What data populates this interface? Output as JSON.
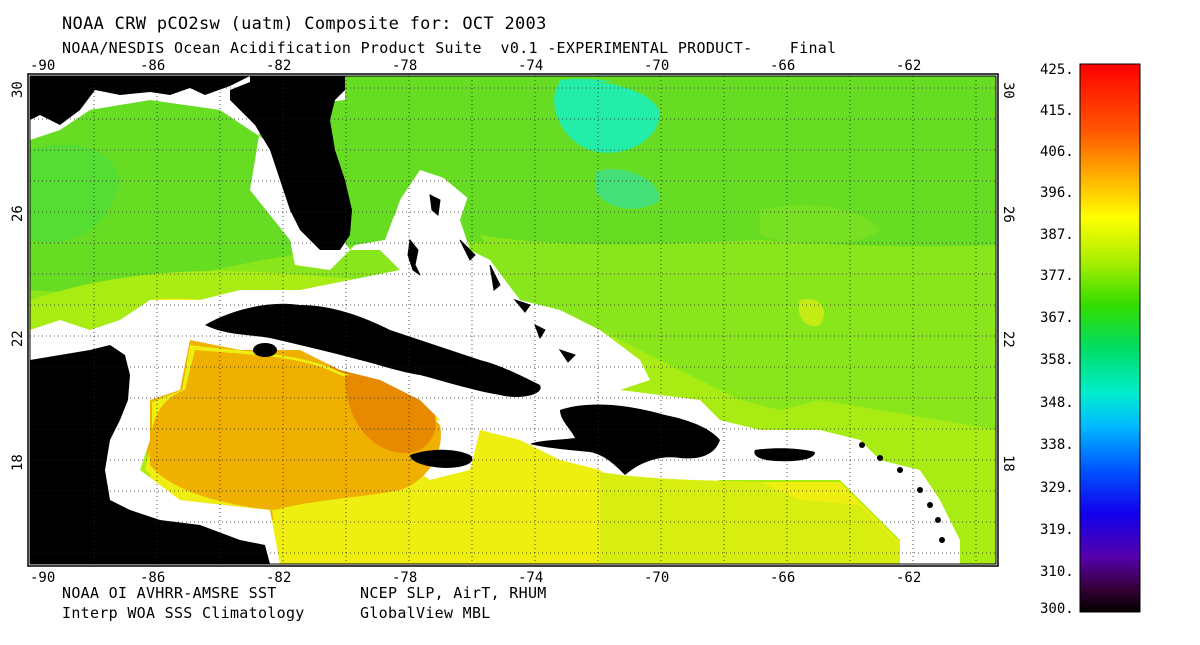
{
  "header": {
    "title": "NOAA CRW pCO2sw (uatm) Composite for: OCT 2003",
    "subtitle": "NOAA/NESDIS Ocean Acidification Product Suite  v0.1 -EXPERIMENTAL PRODUCT-    Final"
  },
  "footer": {
    "line1_left": "NOAA OI AVHRR-AMSRE SST",
    "line1_right": "NCEP SLP, AirT, RHUM",
    "line2_left": "Interp WOA SSS Climatology",
    "line2_right": "GlobalView MBL"
  },
  "axes": {
    "lon_ticks": [
      "-90",
      "-86",
      "-82",
      "-78",
      "-74",
      "-70",
      "-66",
      "-62"
    ],
    "lat_ticks": [
      "30",
      "26",
      "22",
      "18"
    ]
  },
  "colorbar": {
    "labels": [
      "425.",
      "415.",
      "406.",
      "396.",
      "387.",
      "377.",
      "367.",
      "358.",
      "348.",
      "338.",
      "329.",
      "319.",
      "310.",
      "300."
    ]
  },
  "colors": {
    "land": "#000000",
    "nodata": "#ffffff",
    "ocean_green": "#66dd22",
    "ocean_lightgreen": "#99ee11",
    "ocean_yellow": "#eeee11",
    "caribbean_orange": "#f0b000",
    "hotspot": "#e07000"
  }
}
